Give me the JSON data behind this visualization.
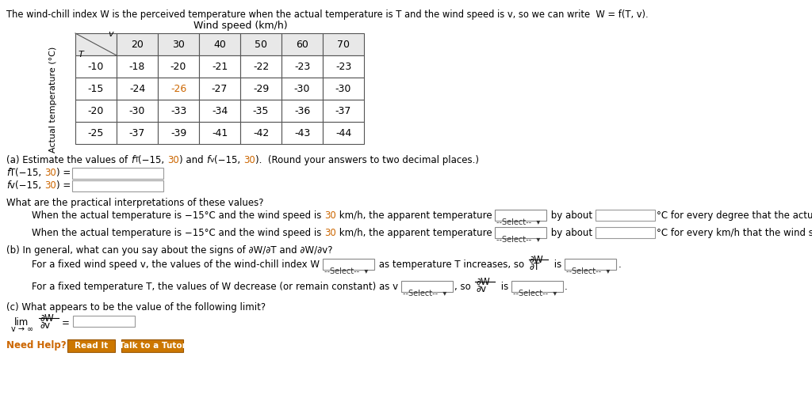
{
  "title_text": "The wind-chill index W is the perceived temperature when the actual temperature is T and the wind speed is v, so we can write  W = f(T, v).",
  "table_title": "Wind speed (km/h)",
  "col_headers": [
    "v",
    "20",
    "30",
    "40",
    "50",
    "60",
    "70"
  ],
  "row_headers": [
    "-10",
    "-15",
    "-20",
    "-25"
  ],
  "table_data": [
    [
      "-18",
      "-20",
      "-21",
      "-22",
      "-23",
      "-23"
    ],
    [
      "-24",
      "-26",
      "-27",
      "-29",
      "-30",
      "-30"
    ],
    [
      "-30",
      "-33",
      "-34",
      "-35",
      "-36",
      "-37"
    ],
    [
      "-37",
      "-39",
      "-41",
      "-42",
      "-43",
      "-44"
    ]
  ],
  "ylabel": "Actual temperature (°C)",
  "highlight_color": "#cc6600",
  "need_help_color": "#cc6600",
  "button_color": "#cc7700",
  "button_text_color": "#ffffff",
  "button1": "Read It",
  "button2": "Talk to a Tutor",
  "bg_color": "#ffffff",
  "text_color": "#000000",
  "table_border_color": "#555555"
}
